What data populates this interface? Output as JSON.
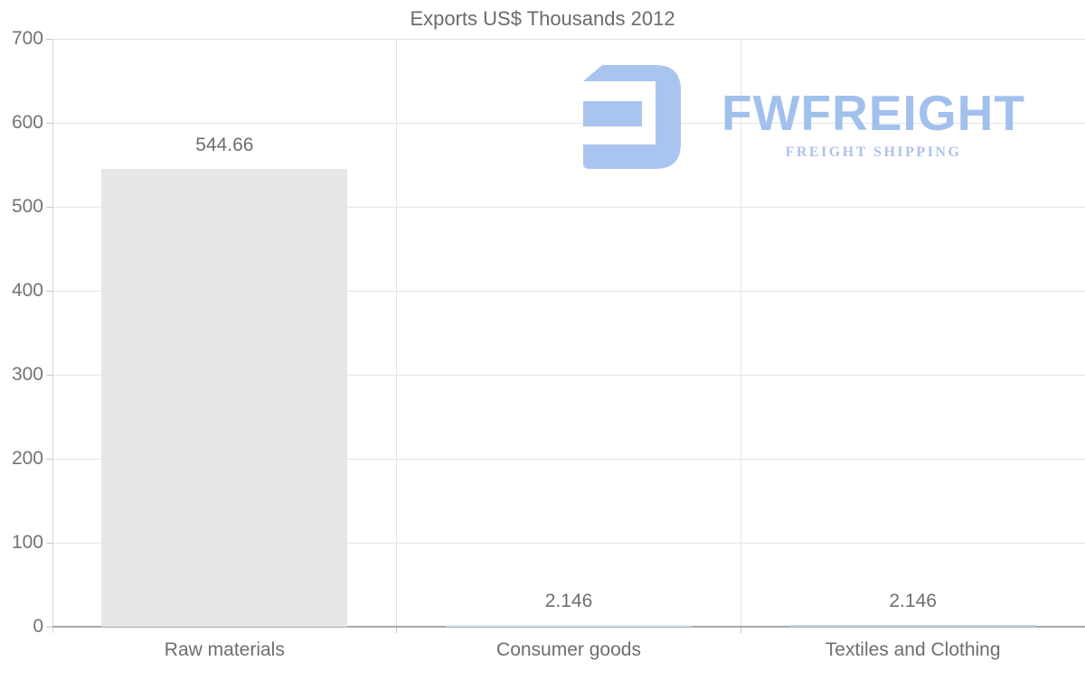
{
  "chart_data": {
    "type": "bar",
    "title": "Exports US$ Thousands 2012",
    "categories": [
      "Raw materials",
      "Consumer goods",
      "Textiles and Clothing"
    ],
    "values": [
      544.66,
      2.146,
      2.146
    ],
    "value_labels": [
      "544.66",
      "2.146",
      "2.146"
    ],
    "bar_colors": [
      "#e7e7e7",
      "#dfeaf3",
      "#c5d4e2"
    ],
    "xlabel": "",
    "ylabel": "",
    "ylim": [
      0,
      700
    ],
    "yticks": [
      0,
      100,
      200,
      300,
      400,
      500,
      600,
      700
    ],
    "grid": true,
    "legend": "none",
    "text_color": "#6e6e6e",
    "grid_color": "#e5e5e5",
    "axis_color": "#a9a9a9"
  },
  "watermark": {
    "brand": "FWFREIGHT",
    "tagline": "FREIGHT SHIPPING",
    "mark_icon": "fwfreight-stylized-e-mark",
    "mark_color": "#a9c4ef",
    "brand_color": "#a2c0ec",
    "tagline_color": "#aec2e8"
  }
}
